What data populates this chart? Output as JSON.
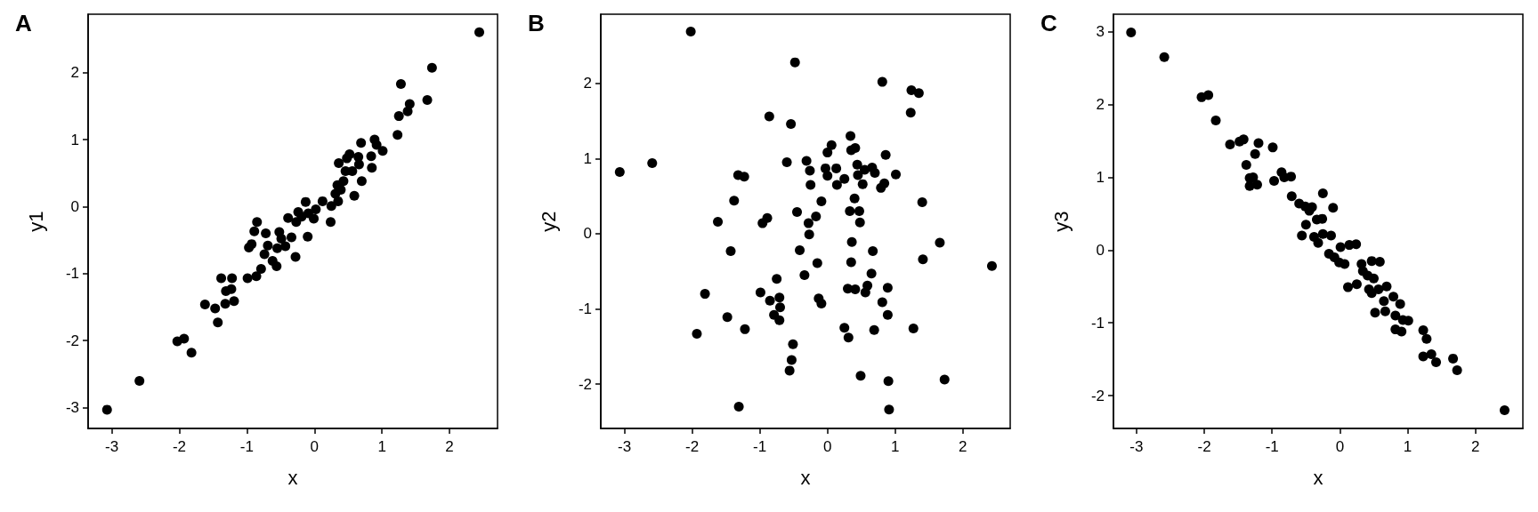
{
  "chart_data": [
    {
      "type": "scatter",
      "title": "A",
      "xlabel": "x",
      "ylabel": "y1",
      "marker": "circle",
      "xlim": [
        -3.35,
        2.71
      ],
      "ylim": [
        -3.31,
        2.87
      ],
      "xticks": [
        -3,
        -2,
        -1,
        0,
        1,
        2
      ],
      "yticks": [
        -3,
        -2,
        -1,
        0,
        1,
        2
      ],
      "series": [
        {
          "color": "#000000",
          "x": [
            -3.07,
            -2.59,
            -2.03,
            -1.93,
            -1.82,
            -1.62,
            -1.47,
            -1.43,
            -1.38,
            -1.32,
            -1.31,
            -1.23,
            -1.22,
            -1.19,
            -0.99,
            -0.86,
            -0.97,
            -0.93,
            -0.89,
            -0.85,
            -0.72,
            -0.79,
            -0.74,
            -0.69,
            -0.62,
            -0.56,
            -0.55,
            -0.52,
            -0.49,
            -0.43,
            -0.39,
            -0.34,
            -0.28,
            -0.27,
            -0.24,
            -0.19,
            -0.13,
            -0.1,
            -0.09,
            -0.01,
            0.02,
            0.12,
            0.24,
            0.25,
            0.35,
            0.31,
            0.34,
            0.36,
            0.39,
            0.43,
            0.46,
            0.48,
            0.52,
            0.56,
            0.59,
            0.65,
            0.66,
            0.69,
            0.7,
            0.84,
            0.85,
            0.89,
            0.92,
            1.01,
            1.23,
            1.25,
            1.28,
            1.38,
            1.41,
            1.67,
            1.74,
            2.44
          ],
          "values": [
            -3.03,
            -2.6,
            -2.01,
            -1.97,
            -2.18,
            -1.46,
            -1.52,
            -1.73,
            -1.07,
            -1.45,
            -1.26,
            -1.23,
            -1.07,
            -1.41,
            -1.07,
            -1.04,
            -0.61,
            -0.56,
            -0.37,
            -0.23,
            -0.4,
            -0.93,
            -0.71,
            -0.58,
            -0.81,
            -0.89,
            -0.62,
            -0.38,
            -0.48,
            -0.59,
            -0.17,
            -0.46,
            -0.75,
            -0.23,
            -0.08,
            -0.15,
            0.07,
            -0.45,
            -0.1,
            -0.18,
            -0.04,
            0.08,
            -0.23,
            0.01,
            0.08,
            0.19,
            0.32,
            0.65,
            0.25,
            0.38,
            0.53,
            0.72,
            0.78,
            0.53,
            0.16,
            0.74,
            0.63,
            0.95,
            0.38,
            0.75,
            0.58,
            1.0,
            0.92,
            0.83,
            1.07,
            1.35,
            1.83,
            1.42,
            1.53,
            1.59,
            2.07,
            2.6
          ]
        }
      ]
    },
    {
      "type": "scatter",
      "title": "B",
      "xlabel": "x",
      "ylabel": "y2",
      "marker": "circle",
      "xlim": [
        -3.35,
        2.7
      ],
      "ylim": [
        -2.59,
        2.92
      ],
      "xticks": [
        -3,
        -2,
        -1,
        0,
        1,
        2
      ],
      "yticks": [
        -2,
        -1,
        0,
        1,
        2
      ],
      "series": [
        {
          "color": "#000000",
          "x": [
            -3.07,
            -2.59,
            -2.02,
            -1.93,
            -1.81,
            -1.62,
            -1.48,
            -1.43,
            -1.38,
            -1.32,
            -1.23,
            -1.31,
            -1.22,
            -0.99,
            -0.96,
            -0.89,
            -0.86,
            -0.85,
            -0.75,
            -0.79,
            -0.71,
            -0.7,
            -0.71,
            -0.6,
            -0.54,
            -0.56,
            -0.53,
            -0.51,
            -0.48,
            -0.45,
            -0.41,
            -0.34,
            -0.31,
            -0.28,
            -0.26,
            -0.25,
            -0.27,
            -0.17,
            -0.15,
            -0.13,
            -0.09,
            -0.09,
            -0.03,
            0.0,
            0.0,
            0.06,
            0.13,
            0.14,
            0.25,
            0.25,
            0.3,
            0.31,
            0.34,
            0.35,
            0.35,
            0.36,
            0.4,
            0.41,
            0.33,
            0.41,
            0.44,
            0.45,
            0.47,
            0.48,
            0.49,
            0.52,
            0.55,
            0.56,
            0.59,
            0.65,
            0.66,
            0.67,
            0.7,
            0.69,
            0.79,
            0.81,
            0.81,
            0.84,
            0.86,
            0.89,
            0.89,
            0.9,
            0.91,
            1.01,
            1.23,
            1.24,
            1.27,
            1.35,
            1.4,
            1.41,
            1.66,
            1.73,
            2.43
          ],
          "values": [
            0.82,
            0.94,
            2.69,
            -1.33,
            -0.8,
            0.16,
            -1.11,
            -0.23,
            0.44,
            0.78,
            0.76,
            -2.3,
            -1.27,
            -0.78,
            0.14,
            0.21,
            1.56,
            -0.89,
            -0.6,
            -1.08,
            -0.85,
            -0.98,
            -1.15,
            0.95,
            1.46,
            -1.82,
            -1.68,
            -1.47,
            2.28,
            0.29,
            -0.22,
            -0.55,
            0.97,
            0.14,
            0.84,
            0.65,
            -0.01,
            0.23,
            -0.39,
            -0.86,
            -0.93,
            0.43,
            0.87,
            1.08,
            0.77,
            1.18,
            0.87,
            0.65,
            0.73,
            -1.25,
            -0.73,
            -1.38,
            1.3,
            -0.38,
            1.11,
            -0.11,
            0.47,
            1.14,
            0.3,
            -0.74,
            0.92,
            0.78,
            0.3,
            0.15,
            -1.89,
            0.66,
            0.85,
            -0.78,
            -0.69,
            -0.53,
            0.88,
            -0.23,
            0.81,
            -1.28,
            0.61,
            -0.91,
            2.02,
            0.67,
            1.05,
            -0.72,
            -1.08,
            -1.96,
            -2.34,
            0.79,
            1.61,
            1.91,
            -1.26,
            1.87,
            0.42,
            -0.34,
            -0.12,
            -1.94,
            -0.43
          ]
        }
      ]
    },
    {
      "type": "scatter",
      "title": "C",
      "xlabel": "x",
      "ylabel": "y3",
      "marker": "circle",
      "xlim": [
        -3.34,
        2.7
      ],
      "ylim": [
        -2.45,
        3.24
      ],
      "xticks": [
        -3,
        -2,
        -1,
        0,
        1,
        2
      ],
      "yticks": [
        -2,
        -1,
        0,
        1,
        2,
        3
      ],
      "series": [
        {
          "color": "#000000",
          "x": [
            -3.08,
            -2.59,
            -2.04,
            -1.94,
            -1.83,
            -1.62,
            -1.48,
            -1.42,
            -1.2,
            -1.25,
            -1.38,
            -1.33,
            -1.28,
            -1.33,
            -1.22,
            -0.99,
            -0.97,
            -0.86,
            -0.82,
            -0.72,
            -0.71,
            -0.6,
            -0.51,
            -0.41,
            -0.45,
            -0.34,
            -0.26,
            -0.25,
            -0.1,
            -0.5,
            -0.56,
            -0.38,
            -0.32,
            -0.25,
            -0.13,
            -0.16,
            -0.08,
            -0.01,
            0.07,
            0.01,
            0.14,
            0.24,
            0.12,
            0.25,
            0.32,
            0.34,
            0.41,
            0.47,
            0.59,
            0.5,
            0.43,
            0.47,
            0.57,
            0.69,
            0.65,
            0.52,
            0.67,
            0.79,
            0.89,
            0.82,
            0.93,
            1.01,
            0.82,
            0.91,
            1.23,
            1.28,
            1.23,
            1.35,
            1.42,
            1.67,
            1.73,
            2.43
          ],
          "values": [
            2.99,
            2.65,
            2.1,
            2.13,
            1.78,
            1.45,
            1.49,
            1.52,
            1.47,
            1.32,
            1.17,
            0.99,
            1.0,
            0.88,
            0.9,
            1.41,
            0.95,
            1.07,
            1.0,
            1.01,
            0.74,
            0.64,
            0.6,
            0.59,
            0.54,
            0.42,
            0.43,
            0.78,
            0.58,
            0.35,
            0.2,
            0.18,
            0.1,
            0.22,
            0.2,
            -0.05,
            -0.1,
            -0.17,
            -0.19,
            0.04,
            0.07,
            0.08,
            -0.51,
            -0.47,
            -0.19,
            -0.29,
            -0.35,
            -0.15,
            -0.16,
            -0.39,
            -0.54,
            -0.59,
            -0.54,
            -0.5,
            -0.7,
            -0.86,
            -0.84,
            -0.64,
            -0.74,
            -0.9,
            -0.96,
            -0.97,
            -1.09,
            -1.12,
            -1.1,
            -1.22,
            -1.46,
            -1.43,
            -1.54,
            -1.49,
            -1.65,
            -2.2
          ]
        }
      ]
    }
  ]
}
